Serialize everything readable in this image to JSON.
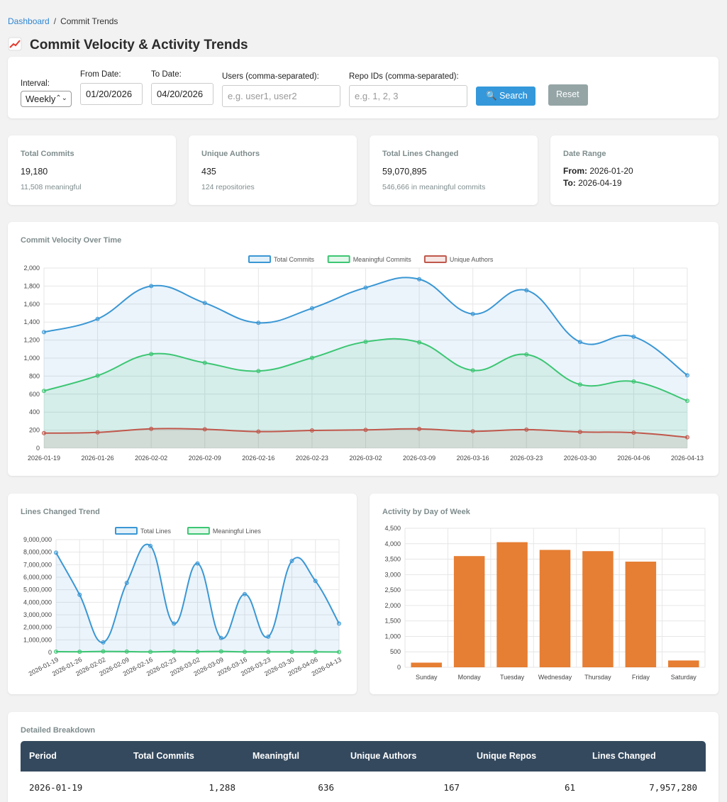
{
  "breadcrumb": {
    "home": "Dashboard",
    "sep": "/",
    "current": "Commit Trends"
  },
  "page_title": "Commit Velocity & Activity Trends",
  "filters": {
    "interval_label": "Interval:",
    "interval_value": "Weekly",
    "from_label": "From Date:",
    "from_value": "01/20/2026",
    "to_label": "To Date:",
    "to_value": "04/20/2026",
    "users_label": "Users (comma-separated):",
    "users_placeholder": "e.g. user1, user2",
    "repos_label": "Repo IDs (comma-separated):",
    "repos_placeholder": "e.g. 1, 2, 3",
    "search_label": "Search",
    "reset_label": "Reset"
  },
  "stats": {
    "total_commits": {
      "label": "Total Commits",
      "value": "19,180",
      "sub": "11,508 meaningful"
    },
    "unique_authors": {
      "label": "Unique Authors",
      "value": "435",
      "sub": "124 repositories"
    },
    "lines_changed": {
      "label": "Total Lines Changed",
      "value": "59,070,895",
      "sub": "546,666 in meaningful commits"
    },
    "date_range": {
      "label": "Date Range",
      "from_label": "From:",
      "from_value": "2026-01-20",
      "to_label": "To:",
      "to_value": "2026-04-19"
    }
  },
  "chart_data": [
    {
      "type": "area",
      "title": "Commit Velocity Over Time",
      "categories": [
        "2026-01-19",
        "2026-01-26",
        "2026-02-02",
        "2026-02-09",
        "2026-02-16",
        "2026-02-23",
        "2026-03-02",
        "2026-03-09",
        "2026-03-16",
        "2026-03-23",
        "2026-03-30",
        "2026-04-06",
        "2026-04-13"
      ],
      "series": [
        {
          "name": "Total Commits",
          "color": "#3a97d4",
          "values": [
            1288,
            1435,
            1800,
            1612,
            1392,
            1553,
            1782,
            1876,
            1490,
            1753,
            1179,
            1237,
            809
          ]
        },
        {
          "name": "Meaningful Commits",
          "color": "#3cc673",
          "values": [
            636,
            805,
            1045,
            948,
            856,
            1003,
            1181,
            1175,
            864,
            1040,
            707,
            740,
            526
          ]
        },
        {
          "name": "Unique Authors",
          "color": "#c0574b",
          "values": [
            167,
            175,
            215,
            210,
            184,
            197,
            203,
            214,
            187,
            206,
            180,
            172,
            121
          ]
        }
      ],
      "ylim": [
        0,
        2000
      ],
      "yticks": [
        "0",
        "200",
        "400",
        "600",
        "800",
        "1,000",
        "1,200",
        "1,400",
        "1,600",
        "1,800",
        "2,000"
      ],
      "legend": "top",
      "grid": true
    },
    {
      "type": "area",
      "title": "Lines Changed Trend",
      "categories": [
        "2026-01-19",
        "2026-01-26",
        "2026-02-02",
        "2026-02-09",
        "2026-02-16",
        "2026-02-23",
        "2026-03-02",
        "2026-03-09",
        "2026-03-16",
        "2026-03-23",
        "2026-03-30",
        "2026-04-06",
        "2026-04-13"
      ],
      "series": [
        {
          "name": "Total Lines",
          "color": "#3a97d4",
          "values": [
            7957280,
            4600000,
            800000,
            5550000,
            8500000,
            2300000,
            7100000,
            1150000,
            4650000,
            1250000,
            7300000,
            5700000,
            2300000
          ]
        },
        {
          "name": "Meaningful Lines",
          "color": "#3cc673",
          "values": [
            60000,
            50000,
            80000,
            65000,
            40000,
            70000,
            60000,
            75000,
            45000,
            40000,
            45000,
            40000,
            30000
          ]
        }
      ],
      "ylim": [
        0,
        9000000
      ],
      "yticks": [
        "0",
        "1,000,000",
        "2,000,000",
        "3,000,000",
        "4,000,000",
        "5,000,000",
        "6,000,000",
        "7,000,000",
        "8,000,000",
        "9,000,000"
      ],
      "legend": "top",
      "grid": true
    },
    {
      "type": "bar",
      "title": "Activity by Day of Week",
      "categories": [
        "Sunday",
        "Monday",
        "Tuesday",
        "Wednesday",
        "Thursday",
        "Friday",
        "Saturday"
      ],
      "values": [
        150,
        3600,
        4050,
        3800,
        3760,
        3420,
        220
      ],
      "color": "#e67e33",
      "ylim": [
        0,
        4500
      ],
      "yticks": [
        "0",
        "500",
        "1,000",
        "1,500",
        "2,000",
        "2,500",
        "3,000",
        "3,500",
        "4,000",
        "4,500"
      ],
      "grid": true
    }
  ],
  "table": {
    "title": "Detailed Breakdown",
    "headers": [
      "Period",
      "Total Commits",
      "Meaningful",
      "Unique Authors",
      "Unique Repos",
      "Lines Changed"
    ],
    "rows": [
      [
        "2026-01-19",
        "1,288",
        "636",
        "167",
        "61",
        "7,957,280"
      ]
    ]
  }
}
